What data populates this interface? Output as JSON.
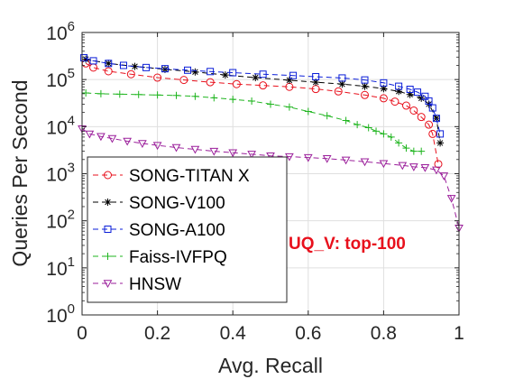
{
  "chart_data": {
    "type": "line",
    "xlabel": "Avg. Recall",
    "ylabel": "Queries Per Second",
    "xlim": [
      0,
      1
    ],
    "ylim": [
      1,
      1000000
    ],
    "yscale": "log",
    "grid": true,
    "legend_position": "bottom-left",
    "x_ticks": [
      "0",
      "0.2",
      "0.4",
      "0.6",
      "0.8",
      "1"
    ],
    "y_ticks": [
      {
        "base": "10",
        "exp": "0"
      },
      {
        "base": "10",
        "exp": "1"
      },
      {
        "base": "10",
        "exp": "2"
      },
      {
        "base": "10",
        "exp": "3"
      },
      {
        "base": "10",
        "exp": "4"
      },
      {
        "base": "10",
        "exp": "5"
      },
      {
        "base": "10",
        "exp": "6"
      }
    ],
    "annotation": {
      "text": "UQ_V: top-100",
      "color": "#e8101c"
    },
    "series": [
      {
        "name": "SONG-TITAN X",
        "color": "#e8101c",
        "marker": "circle",
        "x": [
          0.01,
          0.03,
          0.07,
          0.13,
          0.2,
          0.27,
          0.34,
          0.41,
          0.48,
          0.55,
          0.62,
          0.68,
          0.75,
          0.8,
          0.83,
          0.86,
          0.88,
          0.9,
          0.92,
          0.93,
          0.945
        ],
        "y": [
          220000,
          180000,
          150000,
          130000,
          110000,
          98000,
          88000,
          80000,
          75000,
          70000,
          63000,
          56000,
          47000,
          40000,
          34000,
          28000,
          22000,
          16000,
          11000,
          7000,
          1600
        ]
      },
      {
        "name": "SONG-V100",
        "color": "#000000",
        "marker": "star",
        "x": [
          0.01,
          0.07,
          0.14,
          0.22,
          0.3,
          0.38,
          0.46,
          0.55,
          0.62,
          0.69,
          0.75,
          0.8,
          0.84,
          0.87,
          0.9,
          0.92,
          0.94,
          0.95
        ],
        "y": [
          270000,
          220000,
          190000,
          165000,
          145000,
          125000,
          110000,
          97000,
          88000,
          80000,
          72000,
          64000,
          56000,
          48000,
          40000,
          30000,
          15000,
          4500
        ]
      },
      {
        "name": "SONG-A100",
        "color": "#0a1dd8",
        "marker": "square",
        "x": [
          0.005,
          0.03,
          0.07,
          0.11,
          0.17,
          0.22,
          0.28,
          0.34,
          0.4,
          0.48,
          0.56,
          0.62,
          0.69,
          0.75,
          0.8,
          0.84,
          0.87,
          0.89,
          0.91,
          0.92,
          0.93,
          0.94,
          0.95
        ],
        "y": [
          290000,
          250000,
          220000,
          200000,
          180000,
          170000,
          158000,
          148000,
          140000,
          130000,
          122000,
          115000,
          108000,
          98000,
          85000,
          72000,
          62000,
          54000,
          44000,
          35000,
          25000,
          15000,
          7000
        ]
      },
      {
        "name": "Faiss-IVFPQ",
        "color": "#1fb51f",
        "marker": "plus",
        "x": [
          0.01,
          0.05,
          0.1,
          0.15,
          0.2,
          0.25,
          0.3,
          0.35,
          0.4,
          0.45,
          0.5,
          0.55,
          0.6,
          0.65,
          0.7,
          0.73,
          0.76,
          0.78,
          0.8,
          0.82,
          0.84,
          0.86,
          0.88,
          0.9
        ],
        "y": [
          52000,
          50000,
          49000,
          48000,
          47000,
          46000,
          44000,
          41000,
          38000,
          35000,
          30000,
          26000,
          21000,
          17000,
          13500,
          11000,
          9500,
          8000,
          7000,
          6000,
          4500,
          3500,
          3000,
          3000
        ]
      },
      {
        "name": "HNSW",
        "color": "#9b1f9b",
        "marker": "triangle-down",
        "x": [
          0.0,
          0.02,
          0.05,
          0.08,
          0.12,
          0.16,
          0.2,
          0.25,
          0.3,
          0.35,
          0.4,
          0.45,
          0.5,
          0.55,
          0.6,
          0.65,
          0.7,
          0.75,
          0.8,
          0.85,
          0.88,
          0.91,
          0.94,
          0.96,
          0.98,
          1.0
        ],
        "y": [
          9000,
          7000,
          6200,
          5600,
          4900,
          4400,
          4000,
          3600,
          3300,
          3000,
          2800,
          2600,
          2400,
          2300,
          2200,
          2100,
          1950,
          1800,
          1650,
          1500,
          1400,
          1350,
          1200,
          900,
          300,
          70
        ]
      }
    ]
  }
}
